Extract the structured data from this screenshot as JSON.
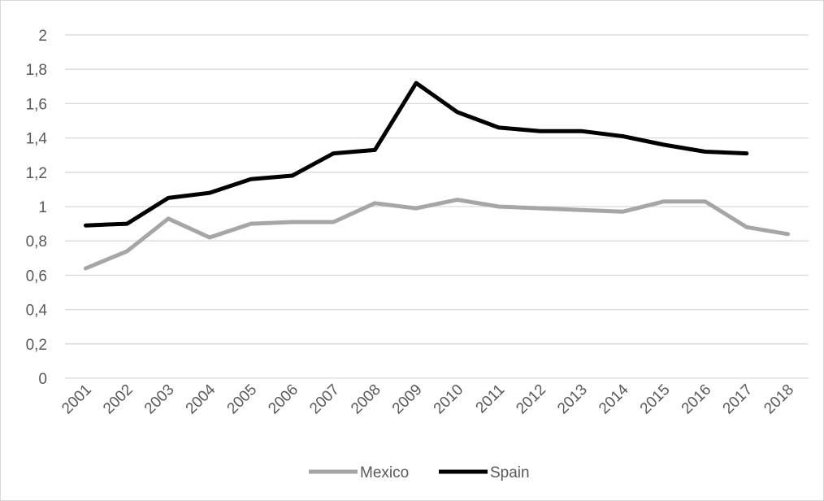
{
  "chart_data": {
    "type": "line",
    "title": "",
    "xlabel": "",
    "ylabel": "",
    "categories": [
      "2001",
      "2002",
      "2003",
      "2004",
      "2005",
      "2006",
      "2007",
      "2008",
      "2009",
      "2010",
      "2011",
      "2012",
      "2013",
      "2014",
      "2015",
      "2016",
      "2017",
      "2018"
    ],
    "ylim": [
      0,
      2
    ],
    "yticks": [
      0,
      0.2,
      0.4,
      0.6,
      0.8,
      1,
      1.2,
      1.4,
      1.6,
      1.8,
      2
    ],
    "ytick_labels": [
      "0",
      "0,2",
      "0,4",
      "0,6",
      "0,8",
      "1",
      "1,2",
      "1,4",
      "1,6",
      "1,8",
      "2"
    ],
    "grid": "horizontal",
    "legend_position": "bottom",
    "series": [
      {
        "name": "Mexico",
        "color": "#a6a6a6",
        "values": [
          0.64,
          0.74,
          0.93,
          0.82,
          0.9,
          0.91,
          0.91,
          1.02,
          0.99,
          1.04,
          1.0,
          0.99,
          0.98,
          0.97,
          1.03,
          1.03,
          0.88,
          0.84
        ]
      },
      {
        "name": "Spain",
        "color": "#000000",
        "values": [
          0.89,
          0.9,
          1.05,
          1.08,
          1.16,
          1.18,
          1.31,
          1.33,
          1.72,
          1.55,
          1.46,
          1.44,
          1.44,
          1.41,
          1.36,
          1.32,
          1.31,
          null
        ]
      }
    ]
  }
}
